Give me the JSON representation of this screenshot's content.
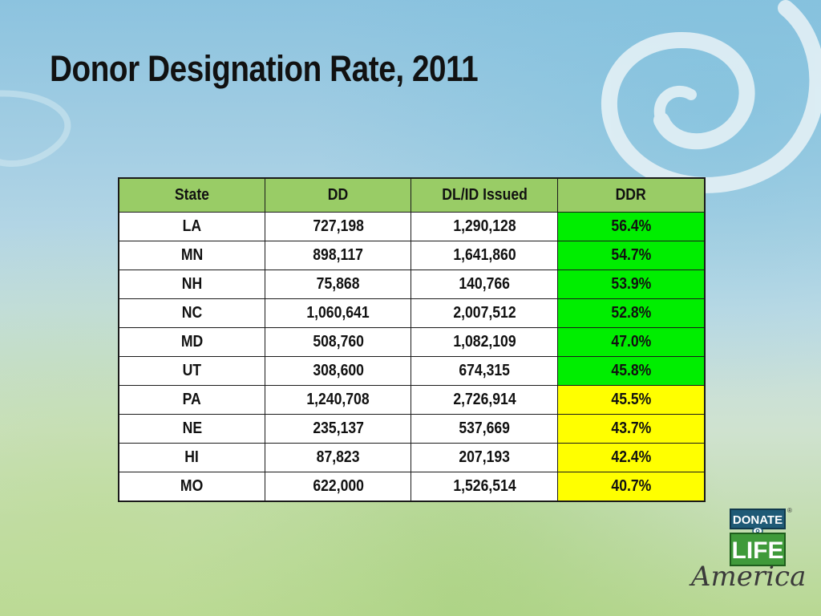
{
  "slide": {
    "title": "Donor Designation Rate, 2011"
  },
  "table": {
    "headers": [
      "State",
      "DD",
      "DL/ID Issued",
      "DDR"
    ],
    "rows": [
      {
        "state": "LA",
        "dd": "727,198",
        "dl_id_issued": "1,290,128",
        "ddr": "56.4%",
        "ddr_color": "green"
      },
      {
        "state": "MN",
        "dd": "898,117",
        "dl_id_issued": "1,641,860",
        "ddr": "54.7%",
        "ddr_color": "green"
      },
      {
        "state": "NH",
        "dd": "75,868",
        "dl_id_issued": "140,766",
        "ddr": "53.9%",
        "ddr_color": "green"
      },
      {
        "state": "NC",
        "dd": "1,060,641",
        "dl_id_issued": "2,007,512",
        "ddr": "52.8%",
        "ddr_color": "green"
      },
      {
        "state": "MD",
        "dd": "508,760",
        "dl_id_issued": "1,082,109",
        "ddr": "47.0%",
        "ddr_color": "green"
      },
      {
        "state": "UT",
        "dd": "308,600",
        "dl_id_issued": "674,315",
        "ddr": "45.8%",
        "ddr_color": "green"
      },
      {
        "state": "PA",
        "dd": "1,240,708",
        "dl_id_issued": "2,726,914",
        "ddr": "45.5%",
        "ddr_color": "yellow"
      },
      {
        "state": "NE",
        "dd": "235,137",
        "dl_id_issued": "537,669",
        "ddr": "43.7%",
        "ddr_color": "yellow"
      },
      {
        "state": "HI",
        "dd": "87,823",
        "dl_id_issued": "207,193",
        "ddr": "42.4%",
        "ddr_color": "yellow"
      },
      {
        "state": "MO",
        "dd": "622,000",
        "dl_id_issued": "1,526,514",
        "ddr": "40.7%",
        "ddr_color": "yellow"
      }
    ]
  },
  "logo": {
    "line1": "DONATE",
    "line2": "LIFE",
    "script": "America",
    "registered_mark": "®"
  },
  "colors": {
    "header_fill": "#99cc66",
    "ddr_green": "#00ee00",
    "ddr_yellow": "#ffff00",
    "logo_blue": "#1f5a76",
    "logo_green": "#3f9a3a"
  }
}
